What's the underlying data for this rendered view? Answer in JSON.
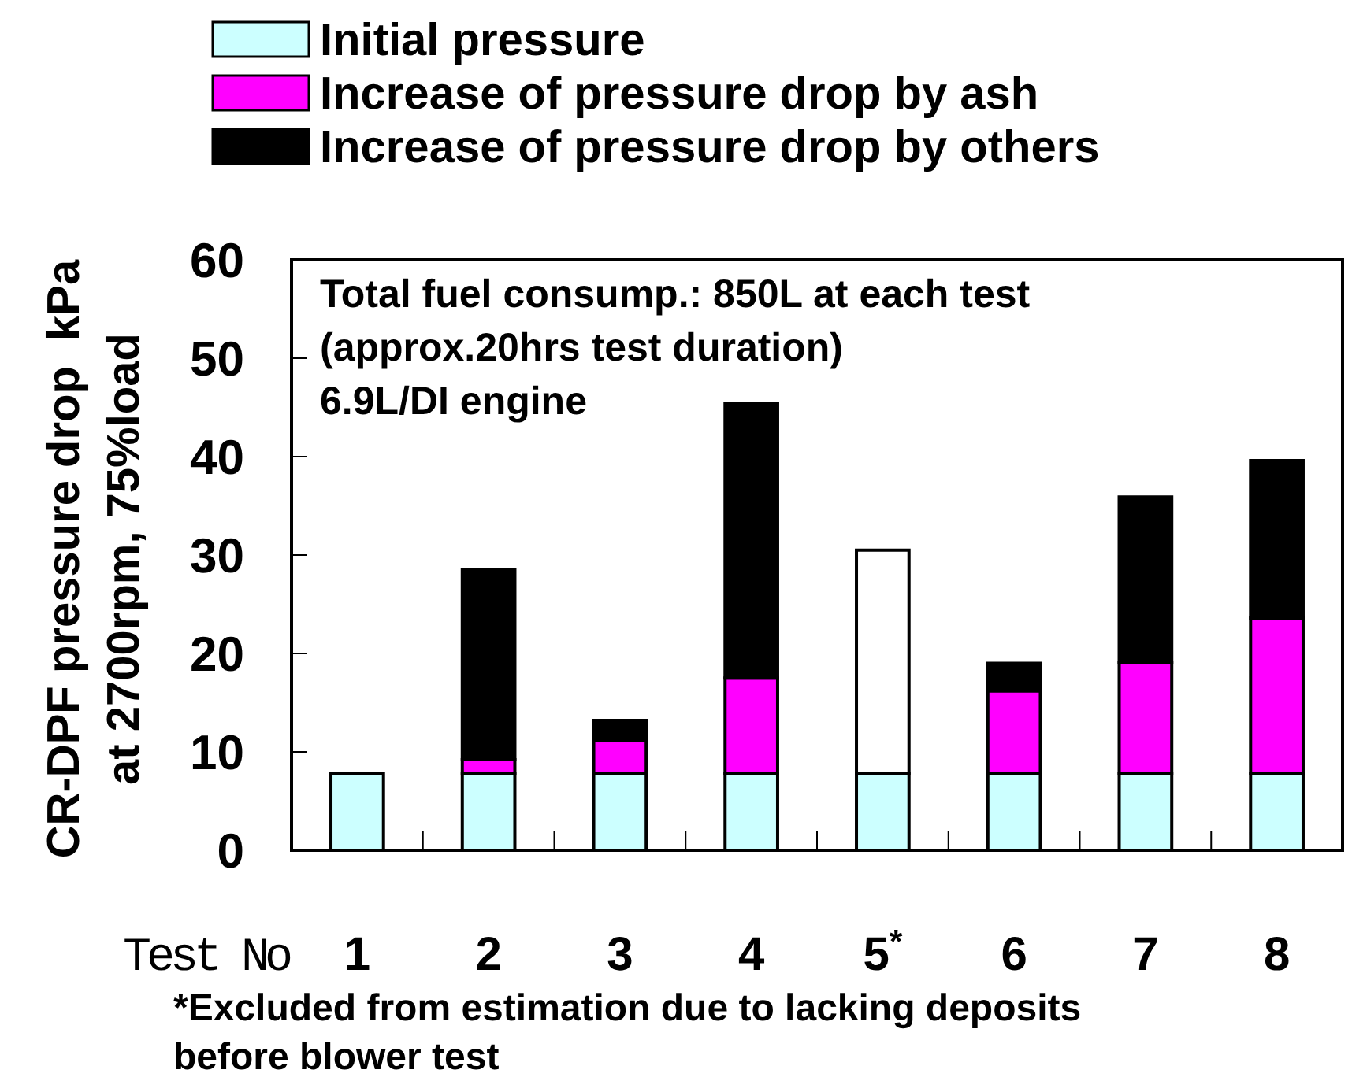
{
  "chart_data": {
    "type": "bar",
    "stacked": true,
    "ylabel": "CR-DPF pressure drop  kPa\nat 2700rpm, 75%load",
    "xlabel": "Test No",
    "categories": [
      "1",
      "2",
      "3",
      "4",
      "5$^{*}$",
      "6",
      "7",
      "8"
    ],
    "series": [
      {
        "name": "Initial pressure",
        "color": "#ccffff",
        "values": [
          7.8,
          7.8,
          7.8,
          7.8,
          7.8,
          7.8,
          7.8,
          7.8
        ]
      },
      {
        "name": "Increase of pressure drop by ash",
        "color": "#ff00ff",
        "values": [
          null,
          1.4,
          3.4,
          9.7,
          null,
          8.4,
          11.3,
          15.8
        ]
      },
      {
        "name": "Increase of pressure drop by others",
        "color": "#000000",
        "colors": [
          null,
          "#000000",
          "#000000",
          "#000000",
          "#ffffff",
          "#000000",
          "#000000",
          "#000000"
        ],
        "values": [
          null,
          19.3,
          2.0,
          27.9,
          22.7,
          2.8,
          16.8,
          16.0
        ]
      }
    ],
    "ylim": [
      0,
      60
    ],
    "yticks": [
      0,
      10,
      20,
      30,
      40,
      50,
      60
    ],
    "legend": "top",
    "grid": false,
    "annotations": [
      "Total fuel consump.: 850L at each test",
      "(approx.20hrs test duration)",
      "6.9L/DI engine",
      "*Excluded from estimation due to lacking deposits\nbefore blower test"
    ]
  }
}
